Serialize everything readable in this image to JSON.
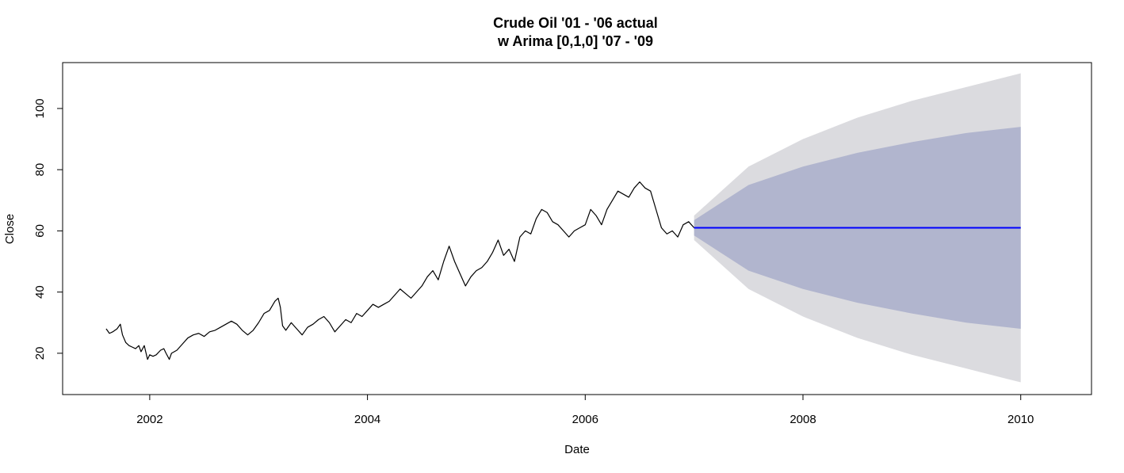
{
  "chart_data": {
    "type": "line",
    "title": "Crude Oil '01 - '06 actual",
    "subtitle": "w Arima [0,1,0] '07 - '09",
    "xlabel": "Date",
    "ylabel": "Close",
    "xlim": [
      2001.2,
      2010.65
    ],
    "ylim": [
      6.5,
      115
    ],
    "x_ticks": [
      2002,
      2004,
      2006,
      2008,
      2010
    ],
    "x_tick_labels": [
      "2002",
      "2004",
      "2006",
      "2008",
      "2010"
    ],
    "y_ticks": [
      20,
      40,
      60,
      80,
      100
    ],
    "y_tick_labels": [
      "20",
      "40",
      "60",
      "80",
      "100"
    ],
    "grid": false,
    "legend": "none",
    "colors": {
      "actual_line": "#000000",
      "forecast_line": "#0000ff",
      "band_80": "#b1b5ce",
      "band_95": "#dbdbdf"
    },
    "series": [
      {
        "key": "actual",
        "x": [
          2001.6,
          2001.63,
          2001.66,
          2001.7,
          2001.73,
          2001.75,
          2001.78,
          2001.81,
          2001.84,
          2001.87,
          2001.9,
          2001.92,
          2001.95,
          2001.98,
          2002.0,
          2002.03,
          2002.06,
          2002.1,
          2002.13,
          2002.15,
          2002.18,
          2002.2,
          2002.25,
          2002.3,
          2002.35,
          2002.4,
          2002.45,
          2002.5,
          2002.55,
          2002.6,
          2002.65,
          2002.7,
          2002.75,
          2002.8,
          2002.85,
          2002.9,
          2002.95,
          2003.0,
          2003.05,
          2003.1,
          2003.15,
          2003.18,
          2003.2,
          2003.22,
          2003.25,
          2003.3,
          2003.35,
          2003.4,
          2003.45,
          2003.5,
          2003.55,
          2003.6,
          2003.65,
          2003.7,
          2003.75,
          2003.8,
          2003.85,
          2003.9,
          2003.95,
          2004.0,
          2004.05,
          2004.1,
          2004.15,
          2004.2,
          2004.25,
          2004.3,
          2004.35,
          2004.4,
          2004.45,
          2004.5,
          2004.55,
          2004.6,
          2004.65,
          2004.7,
          2004.75,
          2004.8,
          2004.85,
          2004.9,
          2004.95,
          2005.0,
          2005.05,
          2005.1,
          2005.15,
          2005.2,
          2005.25,
          2005.3,
          2005.35,
          2005.4,
          2005.45,
          2005.5,
          2005.55,
          2005.6,
          2005.65,
          2005.7,
          2005.75,
          2005.8,
          2005.85,
          2005.9,
          2005.95,
          2006.0,
          2006.05,
          2006.1,
          2006.15,
          2006.2,
          2006.25,
          2006.3,
          2006.35,
          2006.4,
          2006.45,
          2006.5,
          2006.55,
          2006.6,
          2006.65,
          2006.7,
          2006.75,
          2006.8,
          2006.85,
          2006.9,
          2006.95,
          2007.0
        ],
        "y": [
          28,
          26.5,
          27,
          28,
          29.5,
          26,
          23.5,
          22.5,
          22,
          21.5,
          22.5,
          20.5,
          22.5,
          18,
          19.5,
          19,
          19.5,
          21,
          21.5,
          20,
          18,
          20,
          21,
          23,
          25,
          26,
          26.5,
          25.5,
          27,
          27.5,
          28.5,
          29.5,
          30.5,
          29.5,
          27.5,
          26,
          27.5,
          30,
          33,
          34,
          37,
          38,
          35,
          29,
          27.5,
          30,
          28,
          26,
          28.5,
          29.5,
          31,
          32,
          30,
          27,
          29,
          31,
          30,
          33,
          32,
          34,
          36,
          35,
          36,
          37,
          39,
          41,
          39.5,
          38,
          40,
          42,
          45,
          47,
          44,
          50,
          55,
          50,
          46,
          42,
          45,
          47,
          48,
          50,
          53,
          57,
          52,
          54,
          50,
          58,
          60,
          59,
          64,
          67,
          66,
          63,
          62,
          60,
          58,
          60,
          61,
          62,
          67,
          65,
          62,
          67,
          70,
          73,
          72,
          71,
          74,
          76,
          74,
          73,
          67,
          61,
          59,
          60,
          58,
          62,
          63,
          61
        ]
      },
      {
        "key": "forecast",
        "x": [
          2007.0,
          2010.0
        ],
        "y": [
          61,
          61
        ]
      }
    ],
    "bands": [
      {
        "key": "band_95",
        "x": [
          2007.0,
          2007.5,
          2008.0,
          2008.5,
          2009.0,
          2009.5,
          2010.0
        ],
        "lower": [
          57,
          41,
          32,
          25,
          19.5,
          15,
          10.5
        ],
        "upper": [
          65,
          81,
          90,
          97,
          102.5,
          107,
          111.5
        ]
      },
      {
        "key": "band_80",
        "x": [
          2007.0,
          2007.5,
          2008.0,
          2008.5,
          2009.0,
          2009.5,
          2010.0
        ],
        "lower": [
          58.5,
          47,
          41,
          36.5,
          33,
          30,
          28
        ],
        "upper": [
          63.5,
          75,
          81,
          85.5,
          89,
          92,
          94
        ]
      }
    ]
  }
}
